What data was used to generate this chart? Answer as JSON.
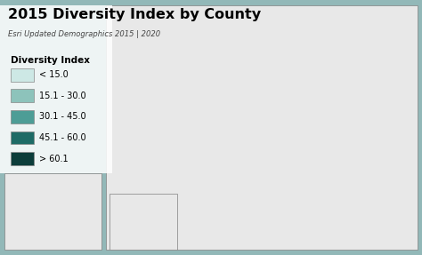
{
  "title": "2015 Diversity Index by County",
  "subtitle": "Esri Updated Demographics 2015 | 2020",
  "legend_title": "Diversity Index",
  "legend_labels": [
    "< 15.0",
    "15.1 - 30.0",
    "30.1 - 45.0",
    "45.1 - 60.0",
    "> 60.1"
  ],
  "legend_colors": [
    "#cde8e5",
    "#8dc3bb",
    "#4d9d96",
    "#1e6b66",
    "#0c3d3a"
  ],
  "outer_bg": "#92b8b8",
  "inner_bg": "#e8e8e8",
  "map_ocean": "#b8d0d0",
  "title_fontsize": 11.5,
  "subtitle_fontsize": 6,
  "legend_title_fontsize": 7.5,
  "legend_fontsize": 7,
  "figsize": [
    4.74,
    2.87
  ],
  "dpi": 100,
  "random_seed": 42,
  "diversity_weights_conus": [
    0.08,
    0.18,
    0.28,
    0.26,
    0.2
  ],
  "diversity_weights_alaska": [
    0.1,
    0.25,
    0.3,
    0.2,
    0.15
  ],
  "diversity_weights_hawaii": [
    0.0,
    0.0,
    0.05,
    0.3,
    0.65
  ]
}
